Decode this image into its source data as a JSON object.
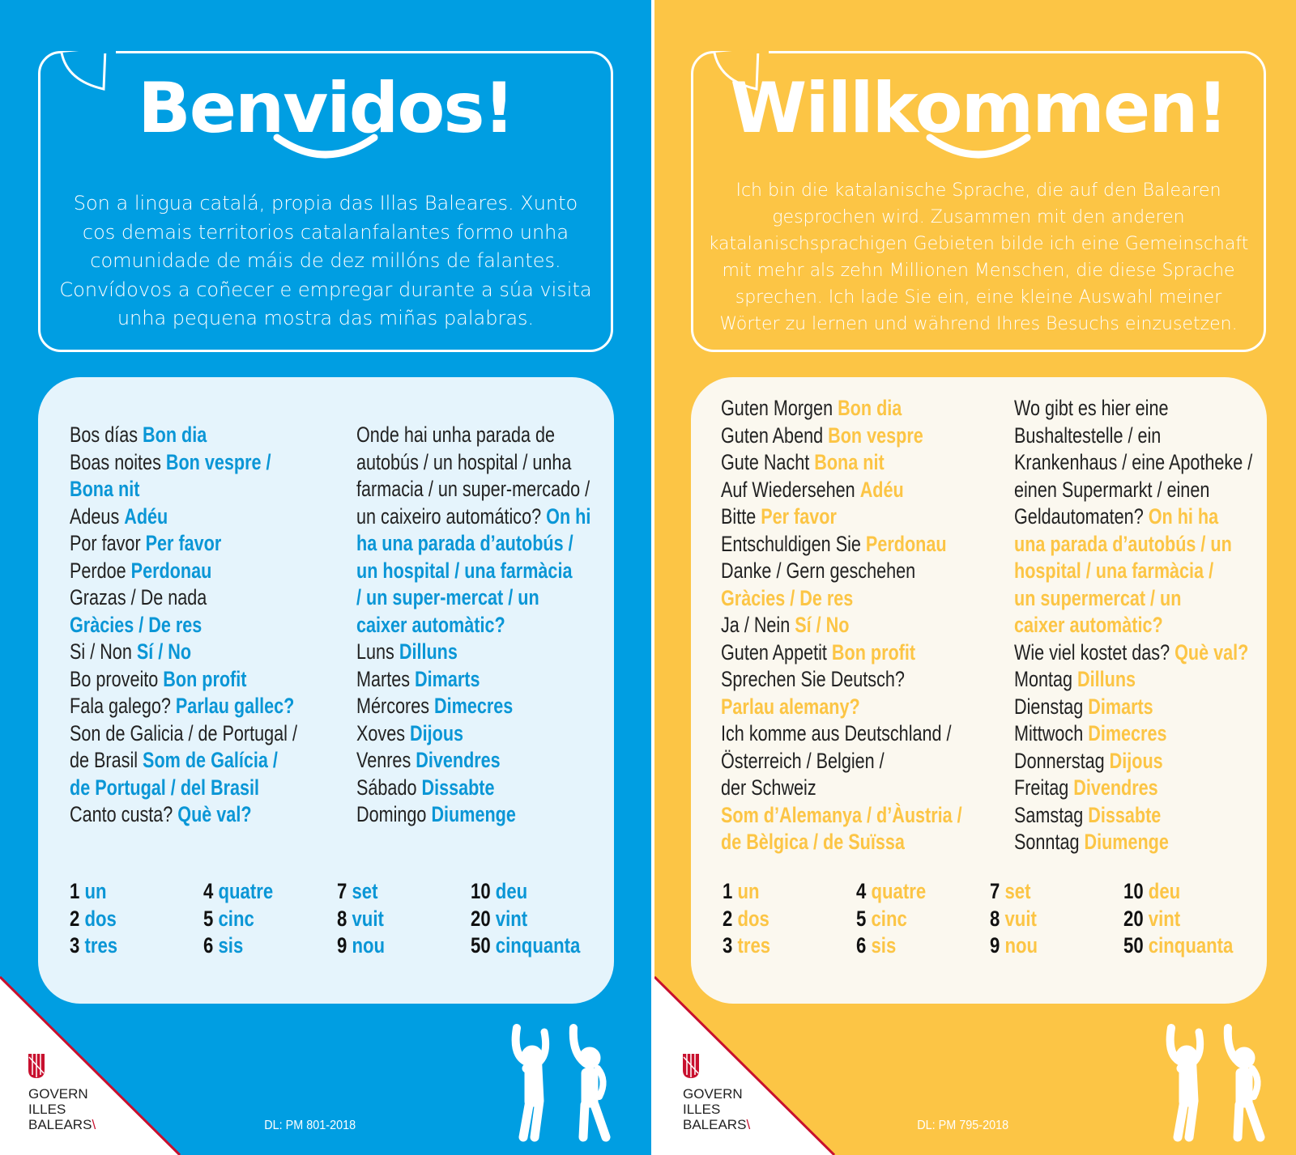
{
  "colors": {
    "blue": "#009ee2",
    "yellow": "#fcc545",
    "blue_box": "#e5f4fc",
    "yellow_box": "#fbf8ef",
    "logo_red": "#c8102e"
  },
  "left": {
    "title": "Benvidos!",
    "paragraph": [
      "Son a lingua catalá, propia das Illas Baleares. Xunto",
      "cos demais territorios catalanfalantes formo unha",
      "comunidade de máis de dez millóns de falantes.",
      "Convídovos a coñecer e empregar durante a súa visita",
      "unha pequena mostra das miñas palabras."
    ],
    "col1": [
      [
        "Bos días ",
        "Bon dia"
      ],
      [
        "Boas noites ",
        "Bon vespre /"
      ],
      [
        "",
        "Bona nit"
      ],
      [
        "Adeus ",
        "Adéu"
      ],
      [
        "Por favor ",
        "Per favor"
      ],
      [
        "Perdoe ",
        "Perdonau"
      ],
      [
        "Grazas / De nada",
        ""
      ],
      [
        "",
        "Gràcies / De res"
      ],
      [
        "Si / Non ",
        "Sí / No"
      ],
      [
        "Bo proveito ",
        "Bon profit"
      ],
      [
        "Fala galego? ",
        "Parlau gallec?"
      ],
      [
        "Son de Galicia / de Portugal /",
        ""
      ],
      [
        "de Brasil ",
        "Som de Galícia /"
      ],
      [
        "",
        "de Portugal / del Brasil"
      ],
      [
        "Canto custa? ",
        "Què val?"
      ]
    ],
    "col2": [
      [
        "Onde hai unha parada de",
        ""
      ],
      [
        "autobús / un hospital / unha",
        ""
      ],
      [
        "farmacia / un super-mercado /",
        ""
      ],
      [
        "un caixeiro automático? ",
        "On hi"
      ],
      [
        "",
        "ha una parada d’autobús /"
      ],
      [
        "",
        "un hospital / una farmàcia"
      ],
      [
        "",
        "/ un super-mercat / un"
      ],
      [
        "",
        "caixer automàtic?"
      ],
      [
        "Luns ",
        "Dilluns"
      ],
      [
        "Martes ",
        "Dimarts"
      ],
      [
        "Mércores ",
        "Dimecres"
      ],
      [
        "Xoves ",
        "Dijous"
      ],
      [
        "Venres ",
        "Divendres"
      ],
      [
        "Sábado ",
        "Dissabte"
      ],
      [
        "Domingo ",
        "Diumenge"
      ]
    ],
    "dl": "DL: PM 801-2018"
  },
  "right": {
    "title": "Willkommen!",
    "paragraph": [
      "Ich bin die katalanische Sprache, die auf den Balearen",
      "gesprochen wird. Zusammen mit den anderen",
      "katalanischsprachigen Gebieten bilde ich eine Gemeinschaft",
      "mit mehr als zehn Millionen Menschen, die diese Sprache",
      "sprechen. Ich lade Sie ein, eine kleine Auswahl meiner",
      "Wörter zu lernen und während Ihres Besuchs einzusetzen."
    ],
    "col1": [
      [
        "Guten Morgen ",
        "Bon dia"
      ],
      [
        "Guten Abend ",
        "Bon vespre"
      ],
      [
        "Gute Nacht ",
        "Bona nit"
      ],
      [
        "Auf Wiedersehen ",
        "Adéu"
      ],
      [
        "Bitte ",
        "Per favor"
      ],
      [
        "Entschuldigen Sie ",
        "Perdonau"
      ],
      [
        "Danke / Gern geschehen",
        ""
      ],
      [
        "",
        "Gràcies / De res"
      ],
      [
        "Ja / Nein ",
        "Sí / No"
      ],
      [
        "Guten Appetit ",
        "Bon profit"
      ],
      [
        "Sprechen Sie Deutsch?",
        ""
      ],
      [
        "",
        "Parlau alemany?"
      ],
      [
        "Ich komme aus Deutschland /",
        ""
      ],
      [
        "Österreich / Belgien /",
        ""
      ],
      [
        "der Schweiz",
        ""
      ],
      [
        "",
        "Som d’Alemanya / d’Àustria /"
      ],
      [
        "",
        "de Bèlgica / de Suïssa"
      ]
    ],
    "col2": [
      [
        "Wo gibt es hier eine",
        ""
      ],
      [
        "Bushaltestelle / ein",
        ""
      ],
      [
        "Krankenhaus / eine Apotheke /",
        ""
      ],
      [
        "einen Supermarkt / einen",
        ""
      ],
      [
        "Geldautomaten? ",
        "On hi ha"
      ],
      [
        "",
        "una parada d’autobús / un"
      ],
      [
        "",
        "hospital / una farmàcia /"
      ],
      [
        "",
        "un supermercat / un"
      ],
      [
        "",
        "caixer automàtic?"
      ],
      [
        "Wie viel kostet das? ",
        "Què val?"
      ],
      [
        "Montag ",
        "Dilluns"
      ],
      [
        "Dienstag ",
        "Dimarts"
      ],
      [
        "Mittwoch ",
        "Dimecres"
      ],
      [
        "Donnerstag ",
        "Dijous"
      ],
      [
        "Freitag ",
        "Divendres"
      ],
      [
        "Samstag ",
        "Dissabte"
      ],
      [
        "Sonntag ",
        "Diumenge"
      ]
    ],
    "dl": "DL: PM 795-2018"
  },
  "numbers": [
    [
      "1",
      "un"
    ],
    [
      "2",
      "dos"
    ],
    [
      "3",
      "tres"
    ],
    [
      "4",
      "quatre"
    ],
    [
      "5",
      "cinc"
    ],
    [
      "6",
      "sis"
    ],
    [
      "7",
      "set"
    ],
    [
      "8",
      "vuit"
    ],
    [
      "9",
      "nou"
    ],
    [
      "10",
      "deu"
    ],
    [
      "20",
      "vint"
    ],
    [
      "50",
      "cinquanta"
    ]
  ],
  "logo": {
    "lines": [
      "GOVERN",
      "ILLES",
      "BALEARS"
    ]
  }
}
